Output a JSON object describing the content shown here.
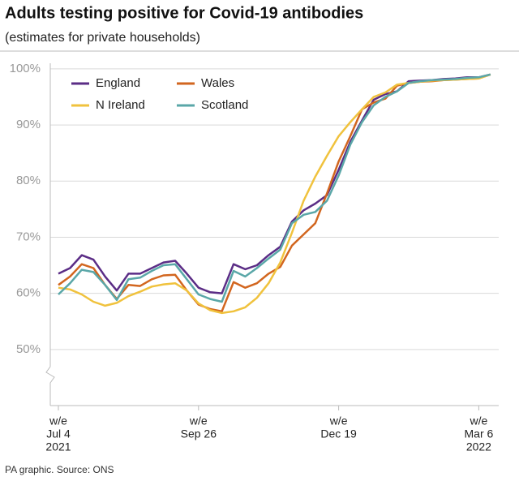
{
  "chart_data": {
    "type": "line",
    "title": "Adults testing positive for Covid-19 antibodies",
    "subtitle": "(estimates for private households)",
    "source": "PA graphic. Source: ONS",
    "categories": [
      [
        "w/e",
        "Jul 4",
        "2021"
      ],
      null,
      null,
      null,
      null,
      null,
      null,
      null,
      null,
      null,
      null,
      null,
      [
        "w/e",
        "Sep 26"
      ],
      null,
      null,
      null,
      null,
      null,
      null,
      null,
      null,
      null,
      null,
      null,
      [
        "w/e",
        "Dec 19"
      ],
      null,
      null,
      null,
      null,
      null,
      null,
      null,
      null,
      null,
      null,
      null,
      [
        "w/e",
        "Mar 6",
        "2022"
      ],
      null
    ],
    "series": [
      {
        "name": "England",
        "color": "#5b2d86",
        "values": [
          63.5,
          64.5,
          66.8,
          66,
          63,
          60.5,
          63.5,
          63.5,
          64.5,
          65.5,
          65.8,
          63.5,
          61,
          60.2,
          60,
          65.2,
          64.3,
          65,
          66.8,
          68.3,
          72.8,
          74.8,
          76,
          77.5,
          82,
          87,
          90.8,
          94.5,
          95.5,
          96,
          97.8,
          97.9,
          98,
          98.2,
          98.3,
          98.5,
          98.5,
          99
        ]
      },
      {
        "name": "Wales",
        "color": "#d2661f",
        "values": [
          61.5,
          63,
          65.2,
          64.5,
          61.5,
          59,
          61.5,
          61.3,
          62.5,
          63.2,
          63.3,
          60.5,
          58,
          57.2,
          56.8,
          62,
          61,
          61.8,
          63.5,
          64.7,
          68.5,
          70.5,
          72.5,
          77.8,
          83.5,
          88,
          92.8,
          94,
          94.7,
          97,
          97.5,
          97.7,
          97.8,
          98,
          98.1,
          98.2,
          98.3,
          99
        ]
      },
      {
        "name": "N Ireland",
        "color": "#f0c23d",
        "values": [
          61,
          60.7,
          59.8,
          58.5,
          57.8,
          58.3,
          59.5,
          60.3,
          61.2,
          61.6,
          61.8,
          60.5,
          58.2,
          57,
          56.5,
          56.8,
          57.5,
          59.2,
          61.8,
          65.5,
          70.8,
          76.5,
          80.8,
          84.5,
          88,
          90.5,
          92.8,
          95,
          95.8,
          97.2,
          97.5,
          97.7,
          97.9,
          98,
          98.1,
          98.2,
          98.3,
          99
        ]
      },
      {
        "name": "Scotland",
        "color": "#5aa7a8",
        "values": [
          59.8,
          61.8,
          64.2,
          63.8,
          61.5,
          58.8,
          62.5,
          62.8,
          64,
          65,
          65.2,
          62.5,
          59.8,
          59,
          58.5,
          64,
          63,
          64.5,
          66.2,
          67.8,
          72.5,
          74,
          74.5,
          76.5,
          81,
          86.5,
          90.5,
          93.5,
          95,
          96,
          97.5,
          97.8,
          98,
          98.1,
          98.2,
          98.4,
          98.5,
          99
        ]
      }
    ],
    "ylim": [
      40,
      101
    ],
    "yticks": [
      {
        "value": 50,
        "label": "50%"
      },
      {
        "value": 60,
        "label": "60%"
      },
      {
        "value": 70,
        "label": "70%"
      },
      {
        "value": 80,
        "label": "80%"
      },
      {
        "value": 90,
        "label": "90%"
      },
      {
        "value": 100,
        "label": "100%"
      }
    ],
    "grid": true,
    "legend": "upper left"
  }
}
